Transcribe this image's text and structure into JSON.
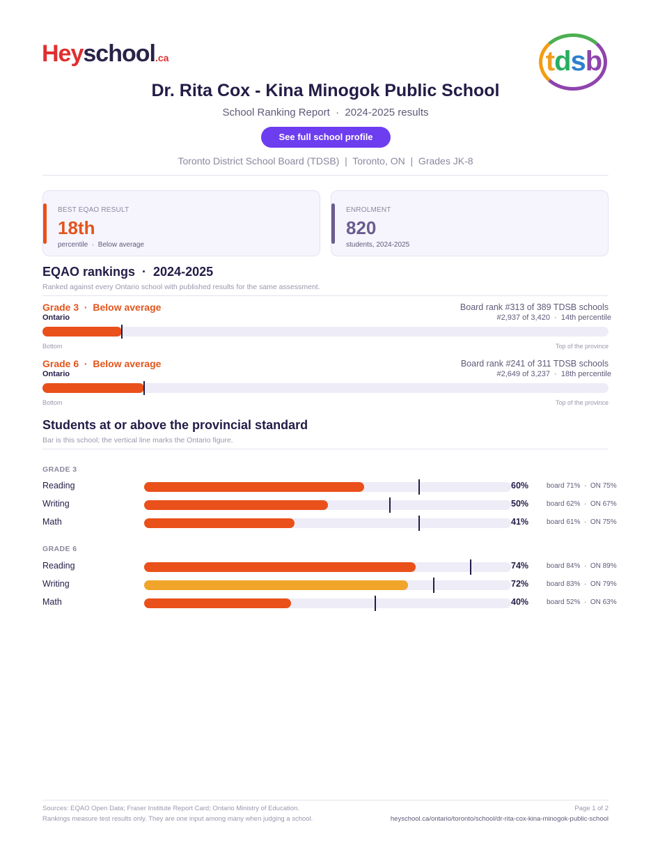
{
  "brand": {
    "hey_logo": {
      "h": "He",
      "y": "y",
      "school": "school",
      "ca": ".ca"
    },
    "tdsb_logo": {
      "t": "t",
      "d": "d",
      "s": "s",
      "b": "b"
    }
  },
  "header": {
    "title": "Dr. Rita Cox - Kina Minogok Public School",
    "subtitle": "School Ranking Report  ·  2024-2025 results",
    "profile_button": "See full school profile",
    "meta": "Toronto District School Board (TDSB)  |  Toronto, ON  |  Grades JK-8"
  },
  "cards": {
    "eqao": {
      "label": "BEST EQAO RESULT",
      "value": "18th",
      "sub": "percentile  ·  Below average",
      "accent": "#e9501a"
    },
    "enrolment": {
      "label": "ENROLMENT",
      "value": "820",
      "sub": "students, 2024-2025",
      "accent": "#6b5c8f"
    }
  },
  "rankings": {
    "heading": "EQAO rankings  ·  2024-2025",
    "note": "Ranked against every Ontario school with published results for the same assessment.",
    "items": [
      {
        "heading": "Grade 3  ·  Below average",
        "scope": "Ontario",
        "board_rank": "Board rank #313 of 389 TDSB schools",
        "province_rank": "#2,937 of 3,420  ·  14th percentile",
        "percentile": 14,
        "bottom": "Bottom",
        "top": "Top of the province"
      },
      {
        "heading": "Grade 6  ·  Below average",
        "scope": "Ontario",
        "board_rank": "Board rank #241 of 311 TDSB schools",
        "province_rank": "#2,649 of 3,237  ·  18th percentile",
        "percentile": 18,
        "bottom": "Bottom",
        "top": "Top of the province"
      }
    ]
  },
  "standards": {
    "heading": "Students at or above the provincial standard",
    "note": "Bar is this school; the vertical line marks the Ontario figure.",
    "groups": [
      {
        "label": "GRADE 3",
        "rows": [
          {
            "subject": "Reading",
            "school": 60,
            "pct": "60%",
            "compare": "board 71%  ·  ON 75%",
            "ontario": 75,
            "color": "#e9501a"
          },
          {
            "subject": "Writing",
            "school": 50,
            "pct": "50%",
            "compare": "board 62%  ·  ON 67%",
            "ontario": 67,
            "color": "#e9501a"
          },
          {
            "subject": "Math",
            "school": 41,
            "pct": "41%",
            "compare": "board 61%  ·  ON 75%",
            "ontario": 75,
            "color": "#e9501a"
          }
        ]
      },
      {
        "label": "GRADE 6",
        "rows": [
          {
            "subject": "Reading",
            "school": 74,
            "pct": "74%",
            "compare": "board 84%  ·  ON 89%",
            "ontario": 89,
            "color": "#e9501a"
          },
          {
            "subject": "Writing",
            "school": 72,
            "pct": "72%",
            "compare": "board 83%  ·  ON 79%",
            "ontario": 79,
            "color": "#f0a52a"
          },
          {
            "subject": "Math",
            "school": 40,
            "pct": "40%",
            "compare": "board 52%  ·  ON 63%",
            "ontario": 63,
            "color": "#e9501a"
          }
        ]
      }
    ]
  },
  "footer": {
    "sources": "Sources: EQAO Open Data; Fraser Institute Report Card; Ontario Ministry of Education.",
    "disclaimer": "Rankings measure test results only. They are one input among many when judging a school.",
    "page": "Page 1 of 2",
    "url": "heyschool.ca/ontario/toronto/school/dr-rita-cox-kina-minogok-public-school"
  }
}
